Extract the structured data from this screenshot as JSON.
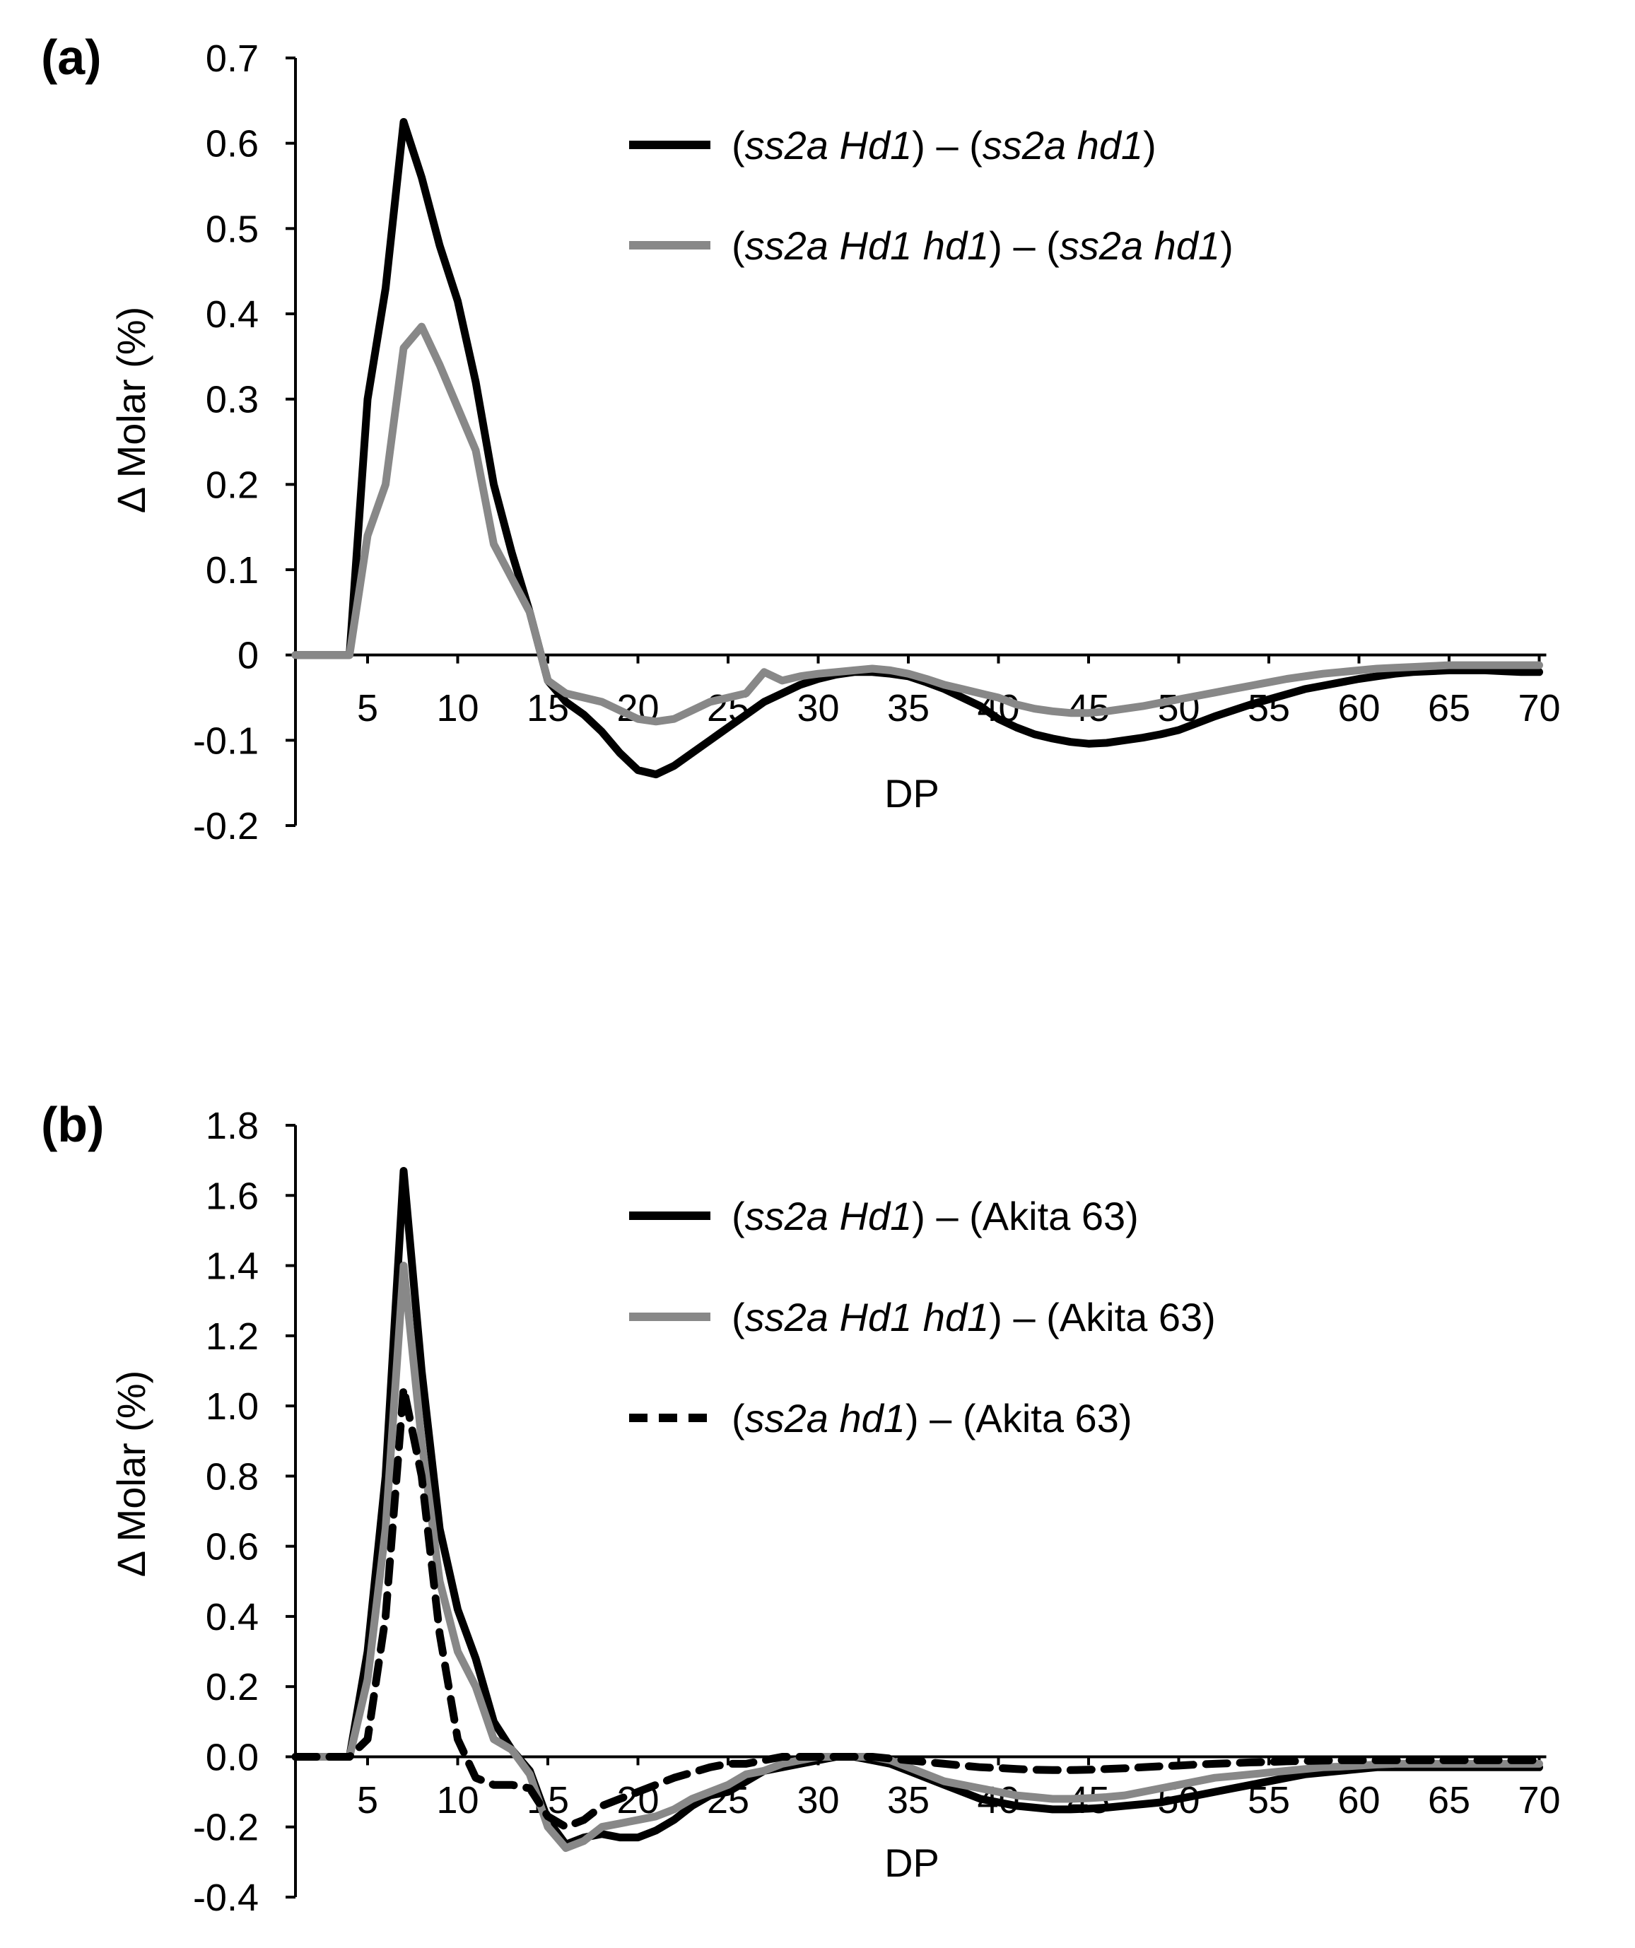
{
  "chart_data": [
    {
      "panel": "(a)",
      "type": "line",
      "xlabel": "DP",
      "ylabel": "Δ Molar (%)",
      "xlim": [
        1,
        70
      ],
      "ylim": [
        -0.2,
        0.7
      ],
      "yticks": [
        -0.2,
        -0.1,
        0,
        0.1,
        0.2,
        0.3,
        0.4,
        0.5,
        0.6,
        0.7
      ],
      "ytick_labels": [
        "-0.2",
        "-0.1",
        "0",
        "0.1",
        "0.2",
        "0.3",
        "0.4",
        "0.5",
        "0.6",
        "0.7"
      ],
      "xticks": [
        5,
        10,
        15,
        20,
        25,
        30,
        35,
        40,
        45,
        50,
        55,
        60,
        65,
        70
      ],
      "xtick_labels": [
        "5",
        "10",
        "15",
        "20",
        "25",
        "30",
        "35",
        "40",
        "45",
        "50",
        "55",
        "60",
        "65",
        "70"
      ],
      "legend_position": "top-right",
      "series": [
        {
          "name": "(ss2a Hd1) – (ss2a hd1)",
          "legend_parts": [
            {
              "text": "(",
              "italic": false
            },
            {
              "text": "ss2a Hd1",
              "italic": true
            },
            {
              "text": ") – (",
              "italic": false
            },
            {
              "text": "ss2a hd1",
              "italic": true
            },
            {
              "text": ")",
              "italic": false
            }
          ],
          "color": "#000000",
          "dash": "solid",
          "x": [
            1,
            2,
            3,
            4,
            5,
            6,
            7,
            8,
            9,
            10,
            11,
            12,
            13,
            14,
            15,
            16,
            17,
            18,
            19,
            20,
            21,
            22,
            23,
            24,
            25,
            26,
            27,
            28,
            29,
            30,
            31,
            32,
            33,
            34,
            35,
            36,
            37,
            38,
            39,
            40,
            41,
            42,
            43,
            44,
            45,
            46,
            47,
            48,
            49,
            50,
            51,
            52,
            53,
            54,
            55,
            56,
            57,
            58,
            59,
            60,
            61,
            62,
            63,
            64,
            65,
            66,
            67,
            68,
            69,
            70
          ],
          "values": [
            0,
            0,
            0,
            0,
            0.3,
            0.43,
            0.625,
            0.56,
            0.48,
            0.415,
            0.32,
            0.2,
            0.12,
            0.05,
            -0.03,
            -0.055,
            -0.07,
            -0.09,
            -0.115,
            -0.135,
            -0.14,
            -0.13,
            -0.115,
            -0.1,
            -0.085,
            -0.07,
            -0.055,
            -0.045,
            -0.035,
            -0.028,
            -0.023,
            -0.02,
            -0.02,
            -0.022,
            -0.025,
            -0.032,
            -0.04,
            -0.05,
            -0.06,
            -0.075,
            -0.085,
            -0.093,
            -0.098,
            -0.102,
            -0.104,
            -0.103,
            -0.1,
            -0.097,
            -0.093,
            -0.088,
            -0.08,
            -0.072,
            -0.065,
            -0.058,
            -0.052,
            -0.046,
            -0.04,
            -0.036,
            -0.032,
            -0.028,
            -0.025,
            -0.022,
            -0.02,
            -0.019,
            -0.018,
            -0.018,
            -0.018,
            -0.019,
            -0.02,
            -0.02
          ]
        },
        {
          "name": "(ss2a Hd1 hd1) – (ss2a hd1)",
          "legend_parts": [
            {
              "text": "(",
              "italic": false
            },
            {
              "text": "ss2a Hd1 hd1",
              "italic": true
            },
            {
              "text": ") – (",
              "italic": false
            },
            {
              "text": "ss2a hd1",
              "italic": true
            },
            {
              "text": ")",
              "italic": false
            }
          ],
          "color": "#888888",
          "dash": "solid",
          "x": [
            1,
            2,
            3,
            4,
            5,
            6,
            7,
            8,
            9,
            10,
            11,
            12,
            13,
            14,
            15,
            16,
            17,
            18,
            19,
            20,
            21,
            22,
            23,
            24,
            25,
            26,
            27,
            28,
            29,
            30,
            31,
            32,
            33,
            34,
            35,
            36,
            37,
            38,
            39,
            40,
            41,
            42,
            43,
            44,
            45,
            46,
            47,
            48,
            49,
            50,
            51,
            52,
            53,
            54,
            55,
            56,
            57,
            58,
            59,
            60,
            61,
            62,
            63,
            64,
            65,
            66,
            67,
            68,
            69,
            70
          ],
          "values": [
            0,
            0,
            0,
            0,
            0.14,
            0.2,
            0.36,
            0.385,
            0.34,
            0.29,
            0.24,
            0.13,
            0.09,
            0.05,
            -0.03,
            -0.045,
            -0.05,
            -0.055,
            -0.065,
            -0.075,
            -0.078,
            -0.075,
            -0.065,
            -0.055,
            -0.05,
            -0.045,
            -0.02,
            -0.03,
            -0.025,
            -0.022,
            -0.02,
            -0.018,
            -0.016,
            -0.018,
            -0.022,
            -0.028,
            -0.035,
            -0.04,
            -0.045,
            -0.05,
            -0.058,
            -0.063,
            -0.066,
            -0.068,
            -0.068,
            -0.066,
            -0.063,
            -0.06,
            -0.056,
            -0.052,
            -0.048,
            -0.044,
            -0.04,
            -0.036,
            -0.032,
            -0.028,
            -0.025,
            -0.022,
            -0.02,
            -0.018,
            -0.016,
            -0.015,
            -0.014,
            -0.013,
            -0.012,
            -0.012,
            -0.012,
            -0.012,
            -0.012,
            -0.012
          ]
        }
      ]
    },
    {
      "panel": "(b)",
      "type": "line",
      "xlabel": "DP",
      "ylabel": "Δ Molar (%)",
      "xlim": [
        1,
        70
      ],
      "ylim": [
        -0.4,
        1.8
      ],
      "yticks": [
        -0.4,
        -0.2,
        0,
        0.2,
        0.4,
        0.6,
        0.8,
        1.0,
        1.2,
        1.4,
        1.6,
        1.8
      ],
      "ytick_labels": [
        "-0.4",
        "-0.2",
        "0.0",
        "0.2",
        "0.4",
        "0.6",
        "0.8",
        "1.0",
        "1.2",
        "1.4",
        "1.6",
        "1.8"
      ],
      "xticks": [
        5,
        10,
        15,
        20,
        25,
        30,
        35,
        40,
        45,
        50,
        55,
        60,
        65,
        70
      ],
      "xtick_labels": [
        "5",
        "10",
        "15",
        "20",
        "25",
        "30",
        "35",
        "40",
        "45",
        "50",
        "55",
        "60",
        "65",
        "70"
      ],
      "legend_position": "top-right",
      "series": [
        {
          "name": "(ss2a Hd1) – (Akita 63)",
          "legend_parts": [
            {
              "text": "(",
              "italic": false
            },
            {
              "text": "ss2a Hd1",
              "italic": true
            },
            {
              "text": ") – (Akita 63)",
              "italic": false
            }
          ],
          "color": "#000000",
          "dash": "solid",
          "x": [
            1,
            2,
            3,
            4,
            5,
            6,
            7,
            8,
            9,
            10,
            11,
            12,
            13,
            14,
            15,
            16,
            17,
            18,
            19,
            20,
            21,
            22,
            23,
            24,
            25,
            26,
            27,
            28,
            29,
            30,
            31,
            32,
            33,
            34,
            35,
            36,
            37,
            38,
            39,
            40,
            41,
            42,
            43,
            44,
            45,
            46,
            47,
            48,
            49,
            50,
            51,
            52,
            53,
            54,
            55,
            56,
            57,
            58,
            59,
            60,
            61,
            62,
            63,
            64,
            65,
            66,
            67,
            68,
            69,
            70
          ],
          "values": [
            0,
            0,
            0,
            0,
            0.3,
            0.8,
            1.67,
            1.1,
            0.65,
            0.42,
            0.28,
            0.1,
            0.02,
            -0.04,
            -0.18,
            -0.25,
            -0.23,
            -0.22,
            -0.23,
            -0.23,
            -0.21,
            -0.18,
            -0.14,
            -0.11,
            -0.1,
            -0.07,
            -0.04,
            -0.03,
            -0.02,
            -0.01,
            0,
            0,
            -0.01,
            -0.02,
            -0.04,
            -0.06,
            -0.08,
            -0.1,
            -0.12,
            -0.13,
            -0.14,
            -0.145,
            -0.15,
            -0.15,
            -0.148,
            -0.145,
            -0.14,
            -0.135,
            -0.13,
            -0.12,
            -0.11,
            -0.1,
            -0.09,
            -0.08,
            -0.07,
            -0.06,
            -0.05,
            -0.045,
            -0.04,
            -0.035,
            -0.03,
            -0.03,
            -0.03,
            -0.03,
            -0.03,
            -0.03,
            -0.03,
            -0.03,
            -0.03,
            -0.03
          ]
        },
        {
          "name": "(ss2a Hd1 hd1) – (Akita 63)",
          "legend_parts": [
            {
              "text": "(",
              "italic": false
            },
            {
              "text": "ss2a Hd1 hd1",
              "italic": true
            },
            {
              "text": ") – (Akita 63)",
              "italic": false
            }
          ],
          "color": "#888888",
          "dash": "solid",
          "x": [
            1,
            2,
            3,
            4,
            5,
            6,
            7,
            8,
            9,
            10,
            11,
            12,
            13,
            14,
            15,
            16,
            17,
            18,
            19,
            20,
            21,
            22,
            23,
            24,
            25,
            26,
            27,
            28,
            29,
            30,
            31,
            32,
            33,
            34,
            35,
            36,
            37,
            38,
            39,
            40,
            41,
            42,
            43,
            44,
            45,
            46,
            47,
            48,
            49,
            50,
            51,
            52,
            53,
            54,
            55,
            56,
            57,
            58,
            59,
            60,
            61,
            62,
            63,
            64,
            65,
            66,
            67,
            68,
            69,
            70
          ],
          "values": [
            0,
            0,
            0,
            0,
            0.22,
            0.65,
            1.4,
            0.9,
            0.5,
            0.3,
            0.2,
            0.05,
            0.02,
            -0.05,
            -0.2,
            -0.26,
            -0.24,
            -0.2,
            -0.19,
            -0.18,
            -0.17,
            -0.15,
            -0.12,
            -0.1,
            -0.08,
            -0.05,
            -0.04,
            -0.02,
            -0.01,
            0,
            0,
            0,
            0,
            -0.01,
            -0.03,
            -0.05,
            -0.07,
            -0.08,
            -0.09,
            -0.1,
            -0.11,
            -0.115,
            -0.12,
            -0.12,
            -0.118,
            -0.115,
            -0.11,
            -0.1,
            -0.09,
            -0.08,
            -0.07,
            -0.06,
            -0.055,
            -0.05,
            -0.045,
            -0.04,
            -0.035,
            -0.03,
            -0.028,
            -0.025,
            -0.022,
            -0.02,
            -0.02,
            -0.02,
            -0.02,
            -0.02,
            -0.02,
            -0.02,
            -0.02,
            -0.02
          ]
        },
        {
          "name": "(ss2a hd1) – (Akita 63)",
          "legend_parts": [
            {
              "text": "(",
              "italic": false
            },
            {
              "text": "ss2a hd1",
              "italic": true
            },
            {
              "text": ") – (Akita 63)",
              "italic": false
            }
          ],
          "color": "#000000",
          "dash": "dashed",
          "x": [
            1,
            2,
            3,
            4,
            5,
            6,
            7,
            8,
            9,
            10,
            11,
            12,
            13,
            14,
            15,
            16,
            17,
            18,
            19,
            20,
            21,
            22,
            23,
            24,
            25,
            26,
            27,
            28,
            29,
            30,
            31,
            32,
            33,
            34,
            35,
            36,
            37,
            38,
            39,
            40,
            41,
            42,
            43,
            44,
            45,
            46,
            47,
            48,
            49,
            50,
            51,
            52,
            53,
            54,
            55,
            56,
            57,
            58,
            59,
            60,
            61,
            62,
            63,
            64,
            65,
            66,
            67,
            68,
            69,
            70
          ],
          "values": [
            0,
            0,
            0,
            0,
            0.05,
            0.4,
            1.05,
            0.8,
            0.35,
            0.05,
            -0.06,
            -0.08,
            -0.08,
            -0.09,
            -0.17,
            -0.2,
            -0.18,
            -0.14,
            -0.12,
            -0.1,
            -0.08,
            -0.06,
            -0.045,
            -0.03,
            -0.02,
            -0.02,
            -0.01,
            0,
            0,
            0,
            0,
            0,
            0,
            -0.005,
            -0.01,
            -0.015,
            -0.02,
            -0.025,
            -0.03,
            -0.032,
            -0.035,
            -0.037,
            -0.038,
            -0.038,
            -0.037,
            -0.035,
            -0.033,
            -0.03,
            -0.027,
            -0.025,
            -0.022,
            -0.02,
            -0.018,
            -0.016,
            -0.015,
            -0.013,
            -0.012,
            -0.011,
            -0.01,
            -0.01,
            -0.01,
            -0.01,
            -0.01,
            -0.01,
            -0.01,
            -0.01,
            -0.01,
            -0.01,
            -0.01,
            -0.01
          ]
        }
      ]
    }
  ]
}
